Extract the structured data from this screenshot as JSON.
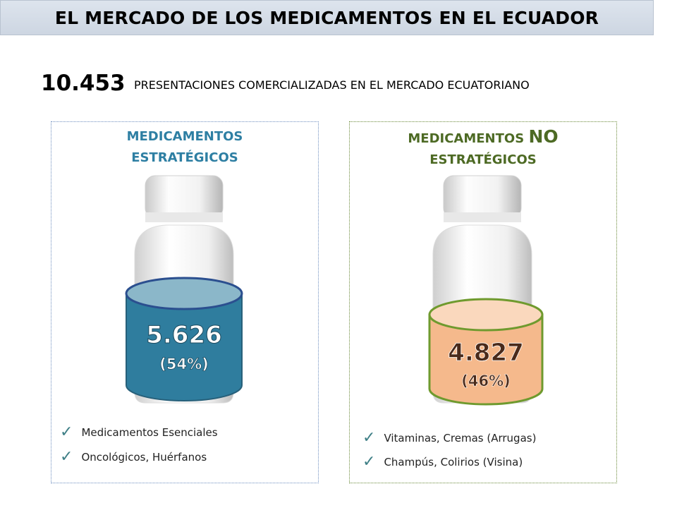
{
  "title": "EL MERCADO DE LOS MEDICAMENTOS EN EL ECUADOR",
  "headline": {
    "number": "10.453",
    "text": "PRESENTACIONES COMERCIALIZADAS EN EL MERCADO ECUATORIANO"
  },
  "left_panel": {
    "heading_line1": "MEDICAMENTOS",
    "heading_line2": "ESTRATÉGICOS",
    "value": "5.626",
    "percent": "(54%)",
    "share": 0.54,
    "fill_color": "#2f7d9e",
    "items": [
      "Medicamentos Esenciales",
      "Oncológicos, Huérfanos"
    ]
  },
  "right_panel": {
    "heading_part1": "MEDICAMENTOS",
    "heading_part2": "NO",
    "heading_line2": "ESTRATÉGICOS",
    "value": "4.827",
    "percent": "(46%)",
    "share": 0.46,
    "fill_color": "#f5b98c",
    "items": [
      "Vitaminas, Cremas (Arrugas)",
      "Champús, Colirios (Visina)"
    ]
  },
  "check_icon": "✓",
  "colors": {
    "left_accent": "#2e7fa3",
    "right_accent": "#4d6a24",
    "left_fill_top": "#8bb7c9",
    "right_fill_top": "#fad8bd",
    "right_outline": "#6f9a2e"
  }
}
